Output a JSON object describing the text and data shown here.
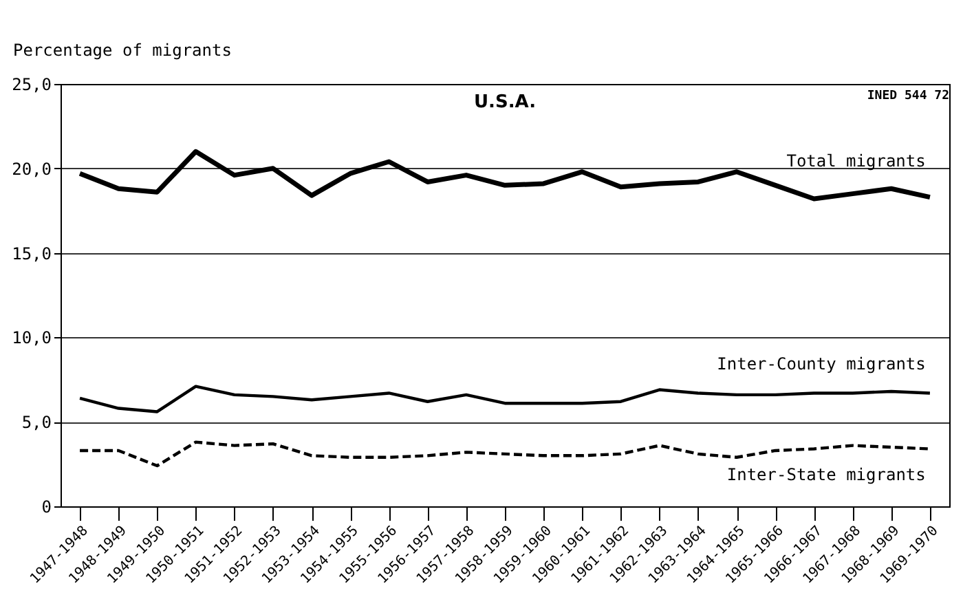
{
  "chart_data": {
    "type": "line",
    "title": "U.S.A.",
    "ylabel": "Percentage of migrants",
    "categories": [
      "1947-1948",
      "1948-1949",
      "1949-1950",
      "1950-1951",
      "1951-1952",
      "1952-1953",
      "1953-1954",
      "1954-1955",
      "1955-1956",
      "1956-1957",
      "1957-1958",
      "1958-1959",
      "1959-1960",
      "1960-1961",
      "1961-1962",
      "1962-1963",
      "1963-1964",
      "1964-1965",
      "1965-1966",
      "1966-1967",
      "1967-1968",
      "1968-1969",
      "1969-1970"
    ],
    "series": [
      {
        "name": "Total migrants",
        "color": "#000000",
        "line_style": "solid",
        "values": [
          19.7,
          18.8,
          18.6,
          21.0,
          19.6,
          20.0,
          18.4,
          19.7,
          20.4,
          19.2,
          19.6,
          19.0,
          19.1,
          19.8,
          18.9,
          19.1,
          19.2,
          19.8,
          19.0,
          18.2,
          18.5,
          18.8,
          18.3
        ]
      },
      {
        "name": "Inter-County migrants",
        "color": "#000000",
        "line_style": "solid",
        "values": [
          6.4,
          5.8,
          5.6,
          7.1,
          6.6,
          6.5,
          6.3,
          6.5,
          6.7,
          6.2,
          6.6,
          6.1,
          6.1,
          6.1,
          6.2,
          6.9,
          6.7,
          6.6,
          6.6,
          6.7,
          6.7,
          6.8,
          6.7
        ]
      },
      {
        "name": "Inter-State migrants",
        "color": "#000000",
        "line_style": "dashed",
        "values": [
          3.3,
          3.3,
          2.4,
          3.8,
          3.6,
          3.7,
          3.0,
          2.9,
          2.9,
          3.0,
          3.2,
          3.1,
          3.0,
          3.0,
          3.1,
          3.6,
          3.1,
          2.9,
          3.3,
          3.4,
          3.6,
          3.5,
          3.4
        ]
      }
    ],
    "ylim": [
      0,
      25
    ],
    "yticks": [
      0,
      {
        "value": 5,
        "label": "5,0"
      },
      {
        "value": 10,
        "label": "10,0"
      },
      {
        "value": 15,
        "label": "15,0"
      },
      {
        "value": 20,
        "label": "20,0"
      },
      {
        "value": 25,
        "label": "25,0"
      }
    ],
    "grid": "y",
    "marker": "none",
    "annotations": [
      "INED 544 72"
    ]
  }
}
